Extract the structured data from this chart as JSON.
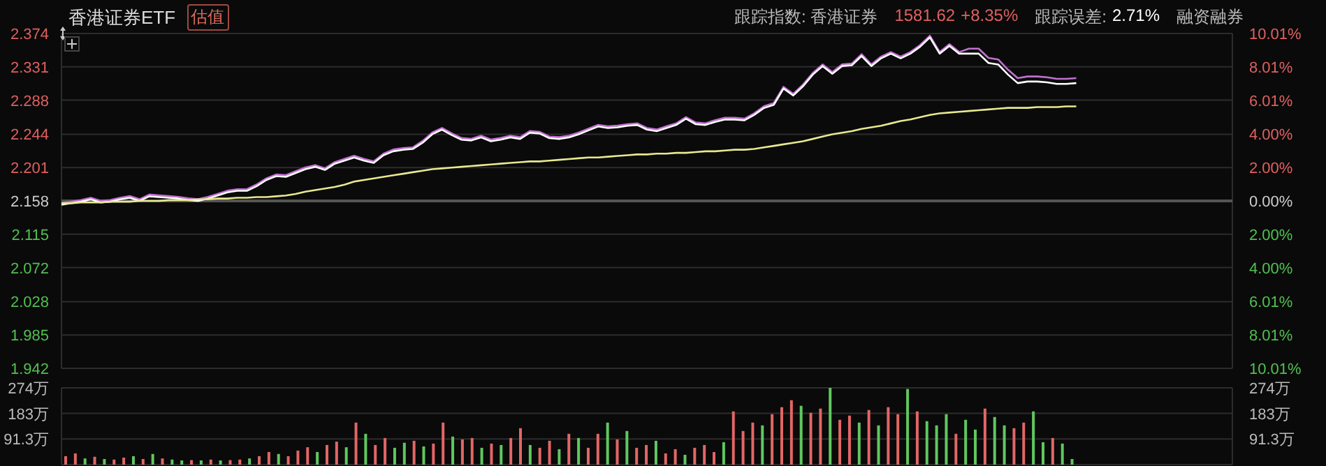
{
  "chart_data": [
    {
      "type": "line",
      "title": "香港证券ETF",
      "annotations": [
        "估值",
        "跟踪指数: 香港证券",
        "1581.62",
        "+8.35%",
        "跟踪误差:",
        "2.71%",
        "融资融券"
      ],
      "categories": [
        null,
        null,
        null,
        null,
        null,
        null,
        null,
        null,
        null,
        null,
        null,
        null,
        null,
        null,
        null,
        null,
        null,
        null,
        null,
        null,
        null,
        null,
        null,
        null,
        null,
        null,
        null,
        null,
        null,
        null,
        null,
        null,
        null,
        null,
        null,
        null,
        null,
        null,
        null,
        null,
        null,
        null,
        null,
        null,
        null,
        null,
        null,
        null,
        null,
        null,
        null,
        null,
        null,
        null,
        null,
        null,
        null,
        null,
        null,
        null,
        null,
        null,
        null,
        null,
        null,
        null,
        null,
        null,
        null,
        null,
        null,
        null,
        null,
        null,
        null,
        null,
        null,
        null,
        null,
        null,
        null,
        null,
        null,
        null,
        null,
        null,
        null,
        null,
        null,
        null,
        null,
        null,
        null,
        null,
        null,
        null,
        null,
        null,
        null,
        null,
        null,
        null,
        null,
        null,
        null,
        null,
        null,
        null,
        null,
        null,
        null,
        null,
        null,
        null,
        null,
        null,
        null,
        null,
        null,
        null,
        null
      ],
      "ylim": [
        1.942,
        2.374
      ],
      "yticks": [
        1.942,
        1.985,
        2.028,
        2.072,
        2.115,
        2.158,
        2.201,
        2.244,
        2.288,
        2.331,
        2.374
      ],
      "y2lim": [
        -10.01,
        10.01
      ],
      "y2ticks": [
        {
          "value": -10.01,
          "label": "10.01%"
        },
        {
          "value": -8.01,
          "label": "8.01%"
        },
        {
          "value": -6.01,
          "label": "6.01%"
        },
        {
          "value": -4,
          "label": "4.00%"
        },
        {
          "value": -2,
          "label": "2.00%"
        },
        {
          "value": 0,
          "label": "0.00%"
        },
        {
          "value": 2,
          "label": "2.00%"
        },
        {
          "value": 4,
          "label": "4.00%"
        },
        {
          "value": 6.01,
          "label": "6.01%"
        },
        {
          "value": 8.01,
          "label": "8.01%"
        },
        {
          "value": 10.01,
          "label": "10.01%"
        }
      ],
      "grid": true,
      "ref_lines": [
        {
          "axis": "y",
          "value": 2.158,
          "color": "#555555"
        }
      ],
      "series": [
        {
          "type": "line",
          "axis": "y2",
          "color": "#c070d0",
          "values": [
            -0.13,
            -0.04,
            0.05,
            0.19,
            0.01,
            0.05,
            0.19,
            0.29,
            0.1,
            0.38,
            0.33,
            0.29,
            0.24,
            0.15,
            0.1,
            0.24,
            0.42,
            0.61,
            0.7,
            0.7,
            0.98,
            1.35,
            1.58,
            1.54,
            1.77,
            2.0,
            2.14,
            1.95,
            2.32,
            2.51,
            2.7,
            2.51,
            2.37,
            2.83,
            3.07,
            3.16,
            3.2,
            3.58,
            4.09,
            4.36,
            4.04,
            3.76,
            3.71,
            3.9,
            3.67,
            3.76,
            3.9,
            3.81,
            4.18,
            4.13,
            3.85,
            3.81,
            3.9,
            4.09,
            4.32,
            4.55,
            4.46,
            4.5,
            4.59,
            4.64,
            4.36,
            4.27,
            4.46,
            4.64,
            5.01,
            4.69,
            4.64,
            4.83,
            4.97,
            4.97,
            4.92,
            5.24,
            5.66,
            5.85,
            6.82,
            6.4,
            6.96,
            7.65,
            8.16,
            7.7,
            8.16,
            8.21,
            8.77,
            8.16,
            8.63,
            8.9,
            8.63,
            8.9,
            9.32,
            9.88,
            8.9,
            9.37,
            8.9,
            9.1,
            9.1,
            8.55,
            8.46,
            7.85,
            7.34,
            7.44,
            7.44,
            7.39,
            7.3,
            7.3,
            7.34,
            null,
            null,
            null,
            null,
            null,
            null,
            null,
            null,
            null,
            null,
            null,
            null,
            null,
            null,
            null,
            null
          ]
        },
        {
          "type": "line",
          "axis": "y",
          "color": "#ffffff",
          "values": [
            2.153,
            2.155,
            2.157,
            2.16,
            2.156,
            2.157,
            2.16,
            2.162,
            2.158,
            2.164,
            2.163,
            2.162,
            2.161,
            2.159,
            2.158,
            2.161,
            2.165,
            2.169,
            2.171,
            2.171,
            2.177,
            2.185,
            2.19,
            2.189,
            2.194,
            2.199,
            2.202,
            2.198,
            2.206,
            2.21,
            2.214,
            2.21,
            2.207,
            2.217,
            2.222,
            2.224,
            2.225,
            2.233,
            2.244,
            2.25,
            2.243,
            2.237,
            2.236,
            2.24,
            2.235,
            2.237,
            2.24,
            2.238,
            2.246,
            2.245,
            2.239,
            2.238,
            2.24,
            2.244,
            2.249,
            2.254,
            2.252,
            2.253,
            2.255,
            2.256,
            2.25,
            2.248,
            2.252,
            2.256,
            2.264,
            2.257,
            2.256,
            2.26,
            2.263,
            2.263,
            2.262,
            2.269,
            2.278,
            2.282,
            2.303,
            2.294,
            2.306,
            2.321,
            2.332,
            2.322,
            2.332,
            2.333,
            2.345,
            2.332,
            2.342,
            2.348,
            2.342,
            2.348,
            2.357,
            2.369,
            2.348,
            2.358,
            2.348,
            2.348,
            2.348,
            2.336,
            2.334,
            2.321,
            2.31,
            2.312,
            2.312,
            2.311,
            2.309,
            2.309,
            2.31,
            null,
            null,
            null,
            null,
            null,
            null,
            null,
            null,
            null,
            null,
            null,
            null,
            null,
            null,
            null,
            null
          ]
        },
        {
          "type": "line",
          "axis": "y",
          "color": "#e8e890",
          "values": [
            2.155,
            2.155,
            2.156,
            2.156,
            2.156,
            2.157,
            2.157,
            2.157,
            2.158,
            2.158,
            2.158,
            2.159,
            2.159,
            2.159,
            2.16,
            2.16,
            2.161,
            2.161,
            2.162,
            2.162,
            2.163,
            2.163,
            2.164,
            2.165,
            2.167,
            2.17,
            2.172,
            2.174,
            2.176,
            2.179,
            2.183,
            2.185,
            2.187,
            2.189,
            2.191,
            2.193,
            2.195,
            2.197,
            2.199,
            2.2,
            2.201,
            2.202,
            2.203,
            2.204,
            2.205,
            2.206,
            2.207,
            2.208,
            2.209,
            2.209,
            2.21,
            2.211,
            2.212,
            2.213,
            2.214,
            2.214,
            2.215,
            2.216,
            2.217,
            2.218,
            2.218,
            2.219,
            2.219,
            2.22,
            2.22,
            2.221,
            2.222,
            2.222,
            2.223,
            2.224,
            2.224,
            2.225,
            2.227,
            2.229,
            2.231,
            2.233,
            2.235,
            2.238,
            2.241,
            2.244,
            2.246,
            2.248,
            2.251,
            2.253,
            2.255,
            2.258,
            2.261,
            2.263,
            2.266,
            2.269,
            2.271,
            2.272,
            2.273,
            2.274,
            2.275,
            2.276,
            2.277,
            2.278,
            2.278,
            2.278,
            2.279,
            2.279,
            2.279,
            2.28,
            2.28,
            null,
            null,
            null,
            null,
            null,
            null,
            null,
            null,
            null,
            null,
            null,
            null,
            null,
            null,
            null,
            null
          ]
        }
      ]
    },
    {
      "type": "bar",
      "categories": [
        null,
        null,
        null,
        null,
        null,
        null,
        null,
        null,
        null,
        null,
        null,
        null,
        null,
        null,
        null,
        null,
        null,
        null,
        null,
        null,
        null,
        null,
        null,
        null,
        null,
        null,
        null,
        null,
        null,
        null,
        null,
        null,
        null,
        null,
        null,
        null,
        null,
        null,
        null,
        null,
        null,
        null,
        null,
        null,
        null,
        null,
        null,
        null,
        null,
        null,
        null,
        null,
        null,
        null,
        null,
        null,
        null,
        null,
        null,
        null,
        null,
        null,
        null,
        null,
        null,
        null,
        null,
        null,
        null,
        null,
        null,
        null,
        null,
        null,
        null,
        null,
        null,
        null,
        null,
        null,
        null,
        null,
        null,
        null,
        null,
        null,
        null,
        null,
        null,
        null,
        null,
        null,
        null,
        null,
        null,
        null,
        null,
        null,
        null,
        null,
        null,
        null,
        null,
        null,
        null,
        null,
        null,
        null,
        null,
        null,
        null,
        null,
        null,
        null,
        null,
        null,
        null,
        null,
        null,
        null,
        null
      ],
      "ylim": [
        0,
        274
      ],
      "yticks": [
        {
          "value": 91.3,
          "label": "91.3万"
        },
        {
          "value": 183,
          "label": "183万"
        },
        {
          "value": 274,
          "label": "274万"
        }
      ],
      "y2lim": [
        0,
        274
      ],
      "y2ticks": [
        {
          "value": 91.3,
          "label": "91.3万"
        },
        {
          "value": 183,
          "label": "183万"
        },
        {
          "value": 274,
          "label": "274万"
        }
      ],
      "grid": true,
      "values": [
        30,
        40,
        22,
        28,
        20,
        18,
        25,
        30,
        20,
        38,
        22,
        18,
        15,
        16,
        15,
        18,
        15,
        16,
        18,
        22,
        30,
        45,
        38,
        30,
        50,
        62,
        45,
        70,
        82,
        62,
        150,
        110,
        70,
        95,
        60,
        78,
        85,
        65,
        75,
        150,
        100,
        90,
        95,
        60,
        75,
        70,
        95,
        130,
        70,
        60,
        85,
        55,
        110,
        95,
        60,
        110,
        150,
        90,
        120,
        60,
        70,
        85,
        40,
        55,
        35,
        60,
        70,
        45,
        80,
        190,
        120,
        150,
        140,
        180,
        205,
        230,
        210,
        185,
        200,
        274,
        160,
        175,
        150,
        195,
        140,
        205,
        180,
        270,
        190,
        155,
        140,
        180,
        110,
        160,
        125,
        200,
        170,
        140,
        130,
        150,
        190,
        80,
        95,
        75,
        20,
        null,
        null,
        null,
        null,
        null,
        null,
        null,
        null,
        null,
        null,
        null,
        null,
        null,
        null,
        null,
        null
      ],
      "colors": [
        "#e36666",
        "#e36666",
        "#5fc85f",
        "#e36666",
        "#5fc85f",
        "#e36666",
        "#e36666",
        "#5fc85f",
        "#e36666",
        "#5fc85f",
        "#e36666",
        "#5fc85f",
        "#5fc85f",
        "#e36666",
        "#5fc85f",
        "#e36666",
        "#5fc85f",
        "#e36666",
        "#e36666",
        "#5fc85f",
        "#e36666",
        "#e36666",
        "#5fc85f",
        "#e36666",
        "#e36666",
        "#e36666",
        "#5fc85f",
        "#e36666",
        "#e36666",
        "#5fc85f",
        "#e36666",
        "#5fc85f",
        "#e36666",
        "#e36666",
        "#5fc85f",
        "#5fc85f",
        "#e36666",
        "#5fc85f",
        "#e36666",
        "#e36666",
        "#5fc85f",
        "#e36666",
        "#e36666",
        "#5fc85f",
        "#e36666",
        "#5fc85f",
        "#e36666",
        "#e36666",
        "#5fc85f",
        "#e36666",
        "#e36666",
        "#5fc85f",
        "#e36666",
        "#5fc85f",
        "#e36666",
        "#e36666",
        "#5fc85f",
        "#e36666",
        "#5fc85f",
        "#e36666",
        "#e36666",
        "#5fc85f",
        "#e36666",
        "#e36666",
        "#5fc85f",
        "#e36666",
        "#e36666",
        "#e36666",
        "#5fc85f",
        "#e36666",
        "#e36666",
        "#e36666",
        "#5fc85f",
        "#e36666",
        "#e36666",
        "#e36666",
        "#5fc85f",
        "#e36666",
        "#e36666",
        "#5fc85f",
        "#e36666",
        "#e36666",
        "#5fc85f",
        "#e36666",
        "#5fc85f",
        "#e36666",
        "#e36666",
        "#5fc85f",
        "#e36666",
        "#5fc85f",
        "#5fc85f",
        "#5fc85f",
        "#e36666",
        "#5fc85f",
        "#5fc85f",
        "#e36666",
        "#5fc85f",
        "#5fc85f",
        "#e36666",
        "#e36666",
        "#5fc85f",
        "#5fc85f",
        "#e36666",
        "#5fc85f",
        "#5fc85f",
        null,
        null,
        null,
        null,
        null,
        null,
        null,
        null,
        null,
        null,
        null,
        null,
        null,
        null,
        null,
        null
      ]
    }
  ]
}
